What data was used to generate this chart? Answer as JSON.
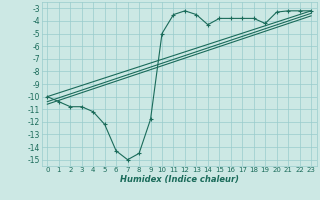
{
  "xlabel": "Humidex (Indice chaleur)",
  "bg_color": "#cce8e4",
  "grid_color": "#99cccc",
  "line_color": "#1a6b5a",
  "xlim": [
    -0.5,
    23.5
  ],
  "ylim": [
    -15.5,
    -2.5
  ],
  "yticks": [
    -15,
    -14,
    -13,
    -12,
    -11,
    -10,
    -9,
    -8,
    -7,
    -6,
    -5,
    -4,
    -3
  ],
  "xticks": [
    0,
    1,
    2,
    3,
    4,
    5,
    6,
    7,
    8,
    9,
    10,
    11,
    12,
    13,
    14,
    15,
    16,
    17,
    18,
    19,
    20,
    21,
    22,
    23
  ],
  "main_line_x": [
    0,
    1,
    2,
    3,
    4,
    5,
    6,
    7,
    8,
    9,
    10,
    11,
    12,
    13,
    14,
    15,
    16,
    17,
    18,
    19,
    20,
    21,
    22,
    23
  ],
  "main_line_y": [
    -10.0,
    -10.4,
    -10.8,
    -10.8,
    -11.2,
    -12.2,
    -14.3,
    -15.0,
    -14.5,
    -11.8,
    -5.0,
    -3.5,
    -3.2,
    -3.5,
    -4.3,
    -3.8,
    -3.8,
    -3.8,
    -3.8,
    -4.2,
    -3.3,
    -3.2,
    -3.2,
    -3.2
  ],
  "line2_x": [
    0,
    23
  ],
  "line2_y": [
    -10.0,
    -3.2
  ],
  "line3_x": [
    0,
    23
  ],
  "line3_y": [
    -10.4,
    -3.4
  ],
  "line4_x": [
    0,
    23
  ],
  "line4_y": [
    -10.6,
    -3.6
  ]
}
